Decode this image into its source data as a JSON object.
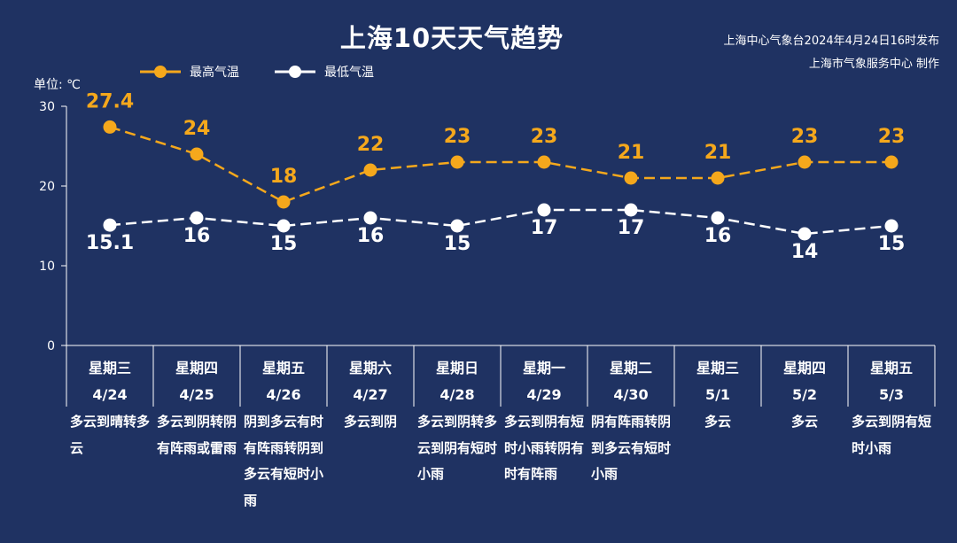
{
  "title": "上海10天天气趋势",
  "source_line1": "上海中心气象台2024年4月24日16时发布",
  "source_line2": "上海市气象服务中心 制作",
  "unit_label": "单位: ℃",
  "colors": {
    "background": "#1f3262",
    "high": "#f5a81c",
    "low": "#ffffff"
  },
  "chart_data": {
    "type": "line",
    "categories": [
      "4/24",
      "4/25",
      "4/26",
      "4/27",
      "4/28",
      "4/29",
      "4/30",
      "5/1",
      "5/2",
      "5/3"
    ],
    "series": [
      {
        "name": "最高气温",
        "values": [
          27.4,
          24,
          18,
          22,
          23,
          23,
          21,
          21,
          23,
          23
        ],
        "color": "#f5a81c",
        "dash": "dashed"
      },
      {
        "name": "最低气温",
        "values": [
          15.1,
          16,
          15,
          16,
          15,
          17,
          17,
          16,
          14,
          15
        ],
        "color": "#ffffff",
        "dash": "dashed"
      }
    ],
    "ylim": [
      0,
      30
    ],
    "yticks": [
      0,
      10,
      20,
      30
    ],
    "ylabel": "单位: ℃",
    "grid": false,
    "legend": "top-left"
  },
  "days": [
    {
      "weekday": "星期三",
      "date": "4/24",
      "weather": "多云到晴转多云"
    },
    {
      "weekday": "星期四",
      "date": "4/25",
      "weather": "多云到阴转阴有阵雨或雷雨"
    },
    {
      "weekday": "星期五",
      "date": "4/26",
      "weather": "阴到多云有时有阵雨转阴到多云有短时小雨"
    },
    {
      "weekday": "星期六",
      "date": "4/27",
      "weather": "多云到阴"
    },
    {
      "weekday": "星期日",
      "date": "4/28",
      "weather": "多云到阴转多云到阴有短时小雨"
    },
    {
      "weekday": "星期一",
      "date": "4/29",
      "weather": "多云到阴有短时小雨转阴有时有阵雨"
    },
    {
      "weekday": "星期二",
      "date": "4/30",
      "weather": "阴有阵雨转阴到多云有短时小雨"
    },
    {
      "weekday": "星期三",
      "date": "5/1",
      "weather": "多云"
    },
    {
      "weekday": "星期四",
      "date": "5/2",
      "weather": "多云"
    },
    {
      "weekday": "星期五",
      "date": "5/3",
      "weather": "多云到阴有短时小雨"
    }
  ]
}
